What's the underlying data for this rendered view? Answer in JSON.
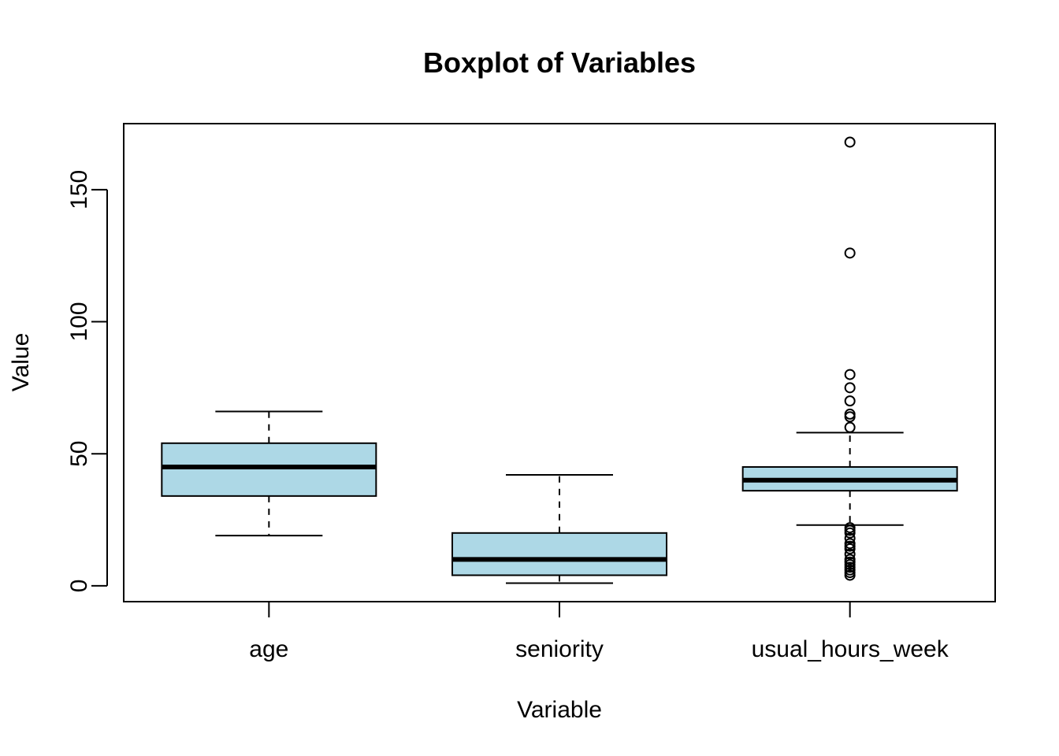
{
  "chart_data": {
    "type": "boxplot",
    "title": "Boxplot of Variables",
    "xlabel": "Variable",
    "ylabel": "Value",
    "ylim": [
      -6,
      175
    ],
    "yticks": [
      0,
      50,
      100,
      150
    ],
    "grid": false,
    "box_fill": "#ADD8E6",
    "categories": [
      "age",
      "seniority",
      "usual_hours_week"
    ],
    "boxes": [
      {
        "name": "age",
        "whisker_low": 19,
        "q1": 34,
        "median": 45,
        "q3": 54,
        "whisker_high": 66,
        "outliers": []
      },
      {
        "name": "seniority",
        "whisker_low": 1,
        "q1": 4,
        "median": 10,
        "q3": 20,
        "whisker_high": 42,
        "outliers": []
      },
      {
        "name": "usual_hours_week",
        "whisker_low": 23,
        "q1": 36,
        "median": 40,
        "q3": 45,
        "whisker_high": 58,
        "outliers": [
          168,
          126,
          80,
          75,
          70,
          65,
          64,
          60,
          22,
          21,
          20,
          18,
          16,
          15,
          14,
          12,
          10,
          9,
          8,
          7,
          6,
          5,
          4
        ]
      }
    ]
  }
}
